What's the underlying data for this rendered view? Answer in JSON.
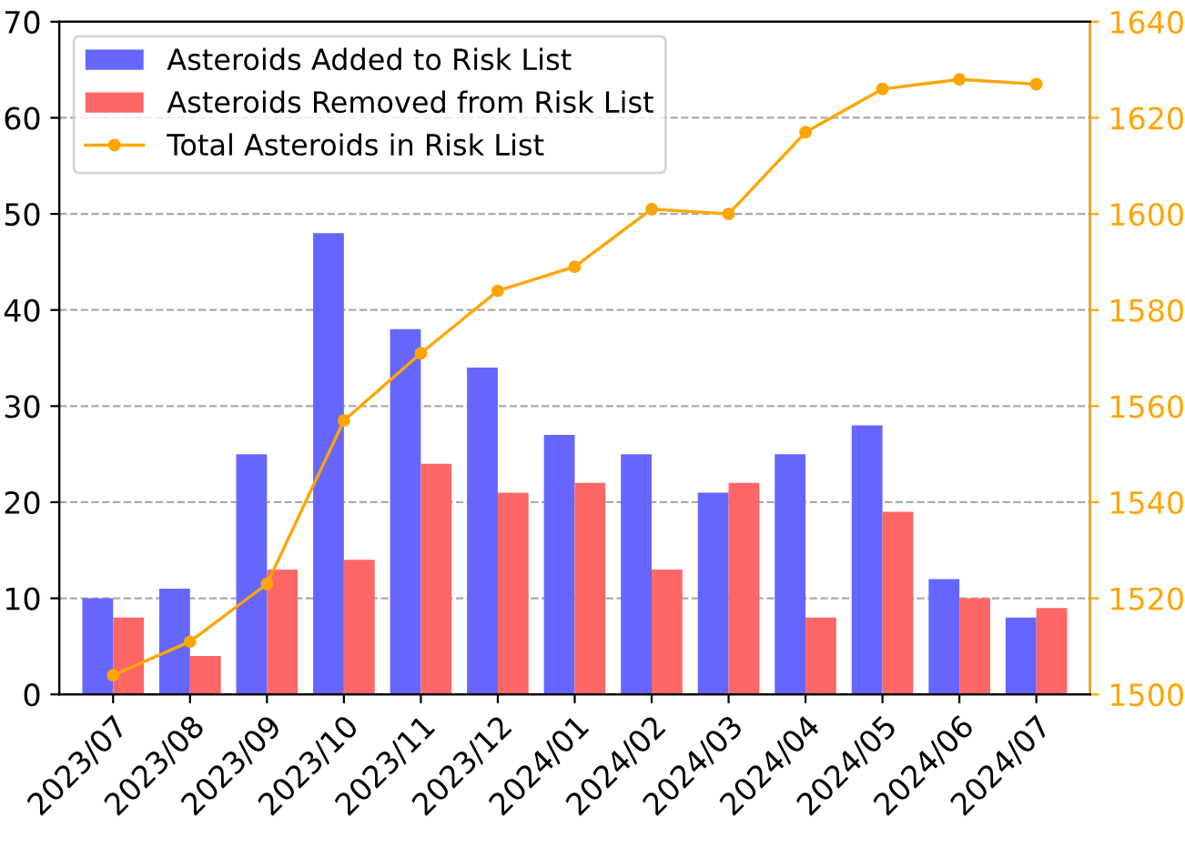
{
  "chart_data": {
    "type": "bar",
    "categories": [
      "2023/07",
      "2023/08",
      "2023/09",
      "2023/10",
      "2023/11",
      "2023/12",
      "2024/01",
      "2024/02",
      "2024/03",
      "2024/04",
      "2024/05",
      "2024/06",
      "2024/07"
    ],
    "series": [
      {
        "name": "Asteroids Added to Risk List",
        "color": "#6666ff",
        "values": [
          10,
          11,
          25,
          48,
          38,
          34,
          27,
          25,
          21,
          25,
          28,
          12,
          8
        ]
      },
      {
        "name": "Asteroids Removed from Risk List",
        "color": "#ff6666",
        "values": [
          8,
          4,
          13,
          14,
          24,
          21,
          22,
          13,
          22,
          8,
          19,
          10,
          9
        ]
      },
      {
        "name": "Total Asteroids in Risk List",
        "color": "#ffa500",
        "type": "line",
        "axis": "y2",
        "marker": "circle",
        "values": [
          1504,
          1511,
          1523,
          1557,
          1571,
          1584,
          1589,
          1601,
          1600,
          1617,
          1626,
          1628,
          1627
        ]
      }
    ],
    "ylim": [
      0,
      70
    ],
    "yticks": [
      0,
      10,
      20,
      30,
      40,
      50,
      60,
      70
    ],
    "y2lim": [
      1500,
      1640
    ],
    "y2ticks": [
      1500,
      1520,
      1540,
      1560,
      1580,
      1600,
      1620,
      1640
    ],
    "grid": "y",
    "legend": "top left"
  }
}
